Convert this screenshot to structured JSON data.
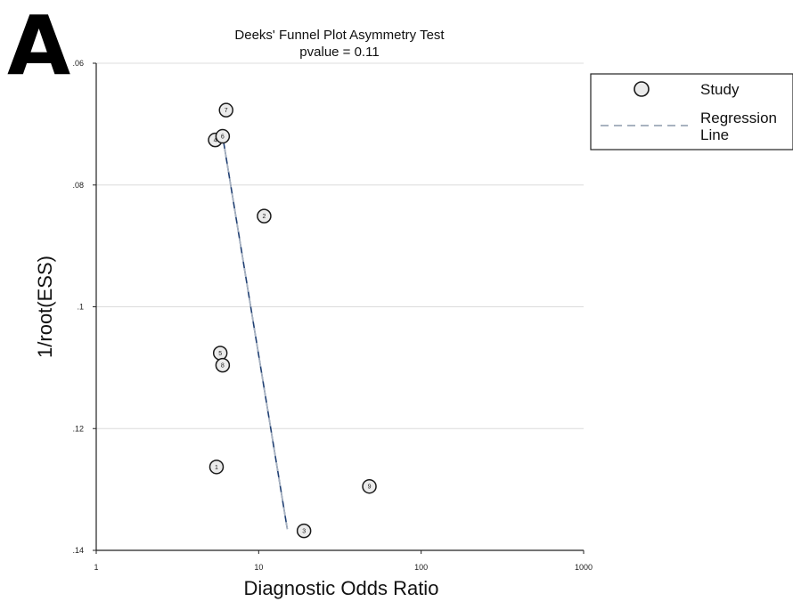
{
  "panel_label": "A",
  "chart_data": {
    "type": "scatter",
    "title": "Deeks' Funnel Plot Asymmetry Test",
    "subtitle": "pvalue  =   0.11",
    "xlabel": "Diagnostic Odds Ratio",
    "ylabel": "1/root(ESS)",
    "x_scale": "log",
    "xlim": [
      1,
      1000
    ],
    "ylim": [
      0.06,
      0.14
    ],
    "y_inverted": true,
    "x_ticks": [
      "1",
      "10",
      "100",
      "1000"
    ],
    "y_ticks": [
      ".06",
      ".08",
      ".1",
      ".12",
      ".14"
    ],
    "grid": "horizontal",
    "legend_position": "right",
    "legend": [
      {
        "marker": "circle",
        "label": "Study"
      },
      {
        "marker": "dashed-line",
        "label": "Regression Line"
      }
    ],
    "studies": [
      {
        "label": "1",
        "x": 5.5,
        "y": 0.1263
      },
      {
        "label": "2",
        "x": 10.8,
        "y": 0.0851
      },
      {
        "label": "3",
        "x": 19.0,
        "y": 0.1368
      },
      {
        "label": "4",
        "x": 5.4,
        "y": 0.0726
      },
      {
        "label": "5",
        "x": 5.8,
        "y": 0.1076
      },
      {
        "label": "6",
        "x": 6.0,
        "y": 0.072
      },
      {
        "label": "7",
        "x": 6.3,
        "y": 0.0677
      },
      {
        "label": "8",
        "x": 6.0,
        "y": 0.1096
      },
      {
        "label": "9",
        "x": 48.0,
        "y": 0.1295
      }
    ],
    "regression_line": [
      {
        "x": 6.0,
        "y": 0.072
      },
      {
        "x": 15.0,
        "y": 0.1365
      }
    ],
    "colors": {
      "marker_fill": "#ebebeb",
      "marker_stroke": "#1a1a1a",
      "regression_solid": "#1f3f73",
      "regression_dashed": "#a8b2c0",
      "grid": "#dcdcdc"
    }
  }
}
